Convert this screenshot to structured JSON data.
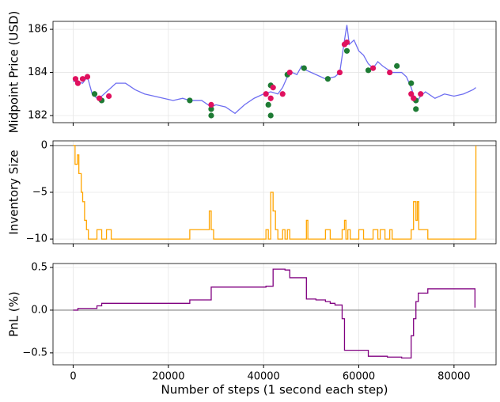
{
  "chart_data": [
    {
      "type": "line",
      "ylabel": "Midpoint Price (USD)",
      "ylim": [
        181.67,
        186.37
      ],
      "yticks": [
        182,
        184,
        186
      ],
      "xlim": [
        -4230,
        88830
      ],
      "grid": true,
      "series": [
        {
          "style": "line",
          "color": "#5555ee",
          "x": [
            0,
            2000,
            3000,
            4000,
            5000,
            6000,
            8000,
            9000,
            11000,
            13000,
            15000,
            17000,
            19000,
            21000,
            23000,
            24500,
            27000,
            29000,
            30000,
            32000,
            34000,
            36000,
            38000,
            40000,
            41500,
            43000,
            44000,
            45000,
            46000,
            47000,
            48000,
            49000,
            51000,
            53000,
            55000,
            56000,
            57000,
            57500,
            58000,
            59000,
            60000,
            61000,
            62000,
            63000,
            64000,
            65000,
            67000,
            69000,
            70000,
            71000,
            72000,
            73000,
            74000,
            76000,
            78000,
            80000,
            82000,
            84000,
            84600
          ],
          "values": [
            183.6,
            183.5,
            183.8,
            183.0,
            182.8,
            182.9,
            183.3,
            183.5,
            183.5,
            183.2,
            183.0,
            182.9,
            182.8,
            182.7,
            182.8,
            182.7,
            182.7,
            182.4,
            182.5,
            182.4,
            182.1,
            182.5,
            182.8,
            183.0,
            183.1,
            183.0,
            183.3,
            183.8,
            184.0,
            183.9,
            184.3,
            184.1,
            183.9,
            183.7,
            183.8,
            184.0,
            185.5,
            186.2,
            185.3,
            185.5,
            185.0,
            184.8,
            184.4,
            184.2,
            184.5,
            184.3,
            184.0,
            184.0,
            183.8,
            183.3,
            182.6,
            182.9,
            183.1,
            182.8,
            183.0,
            182.9,
            183.0,
            183.2,
            183.3
          ]
        },
        {
          "style": "scatter",
          "color": "#1e7b34",
          "x": [
            4500,
            6000,
            24500,
            29000,
            29000,
            41000,
            41500,
            41500,
            45000,
            48500,
            53500,
            57500,
            62000,
            68000,
            71000,
            72000,
            72000
          ],
          "values": [
            183.0,
            182.7,
            182.7,
            182.0,
            182.3,
            182.5,
            182.0,
            183.4,
            183.9,
            184.2,
            183.7,
            185.0,
            184.1,
            184.3,
            183.5,
            182.3,
            182.7
          ]
        },
        {
          "style": "scatter",
          "color": "#e0115f",
          "x": [
            500,
            1000,
            2000,
            3000,
            5500,
            7500,
            29000,
            40500,
            41500,
            42000,
            44000,
            45500,
            56000,
            57000,
            57500,
            63000,
            66500,
            71000,
            71500,
            73000
          ],
          "values": [
            183.7,
            183.5,
            183.7,
            183.8,
            182.8,
            182.9,
            182.5,
            183.0,
            182.8,
            183.3,
            183.0,
            184.0,
            184.0,
            185.3,
            185.4,
            184.2,
            184.0,
            183.0,
            182.8,
            183.0
          ]
        }
      ]
    },
    {
      "type": "line",
      "ylabel": "Inventory Size",
      "ylim": [
        -10.5,
        0.5
      ],
      "yticks": [
        {
          "value": -10,
          "label": "−10"
        },
        {
          "value": -5,
          "label": "−5"
        },
        0
      ],
      "xlim": [
        -4230,
        88830
      ],
      "grid": true,
      "hline": 0,
      "hline_color": "#808080",
      "series": [
        {
          "style": "line",
          "step": "post",
          "color": "#ffa500",
          "x": [
            0,
            400,
            900,
            1200,
            1700,
            2000,
            2400,
            2800,
            3200,
            5000,
            6000,
            7000,
            8000,
            24500,
            28600,
            29000,
            29500,
            40500,
            41000,
            41500,
            42000,
            42500,
            43000,
            44000,
            44500,
            45000,
            45500,
            49000,
            49300,
            53000,
            54000,
            56500,
            57000,
            57300,
            57700,
            58200,
            60000,
            61000,
            63000,
            64000,
            64500,
            65500,
            66500,
            67000,
            71000,
            71500,
            72000,
            72300,
            72600,
            74500,
            84600
          ],
          "values": [
            0,
            -2,
            -1,
            -3,
            -5,
            -6,
            -8,
            -9,
            -10,
            -9,
            -10,
            -9,
            -10,
            -9,
            -7,
            -9,
            -10,
            -9,
            -10,
            -5,
            -7,
            -9,
            -10,
            -9,
            -10,
            -9,
            -10,
            -8,
            -10,
            -9,
            -10,
            -9,
            -8,
            -10,
            -9,
            -10,
            -9,
            -10,
            -9,
            -10,
            -9,
            -10,
            -9,
            -10,
            -9,
            -6,
            -8,
            -6,
            -9,
            -10,
            0
          ]
        }
      ]
    },
    {
      "type": "line",
      "ylabel": "PnL (%)",
      "xlabel": "Number of steps (1 second each step)",
      "ylim": [
        -0.64,
        0.546
      ],
      "yticks": [
        {
          "value": -0.5,
          "label": "−0.5"
        },
        {
          "value": 0,
          "label": "0.0"
        },
        0.5
      ],
      "xlim": [
        -4230,
        88830
      ],
      "xticks": [
        0,
        20000,
        40000,
        60000,
        80000
      ],
      "grid": true,
      "hline": 0,
      "hline_color": "#808080",
      "series": [
        {
          "style": "line",
          "step": "post",
          "color": "#800080",
          "x": [
            0,
            1000,
            5000,
            6000,
            24500,
            29000,
            40500,
            42000,
            44500,
            45500,
            49000,
            51000,
            53000,
            54000,
            55000,
            56500,
            57000,
            62000,
            66000,
            69000,
            71000,
            71500,
            72000,
            72500,
            74500,
            84400
          ],
          "values": [
            0,
            0.02,
            0.05,
            0.08,
            0.12,
            0.27,
            0.28,
            0.48,
            0.47,
            0.38,
            0.13,
            0.12,
            0.1,
            0.08,
            0.06,
            -0.1,
            -0.47,
            -0.54,
            -0.55,
            -0.56,
            -0.3,
            -0.1,
            0.1,
            0.2,
            0.25,
            0.03
          ]
        }
      ]
    }
  ]
}
